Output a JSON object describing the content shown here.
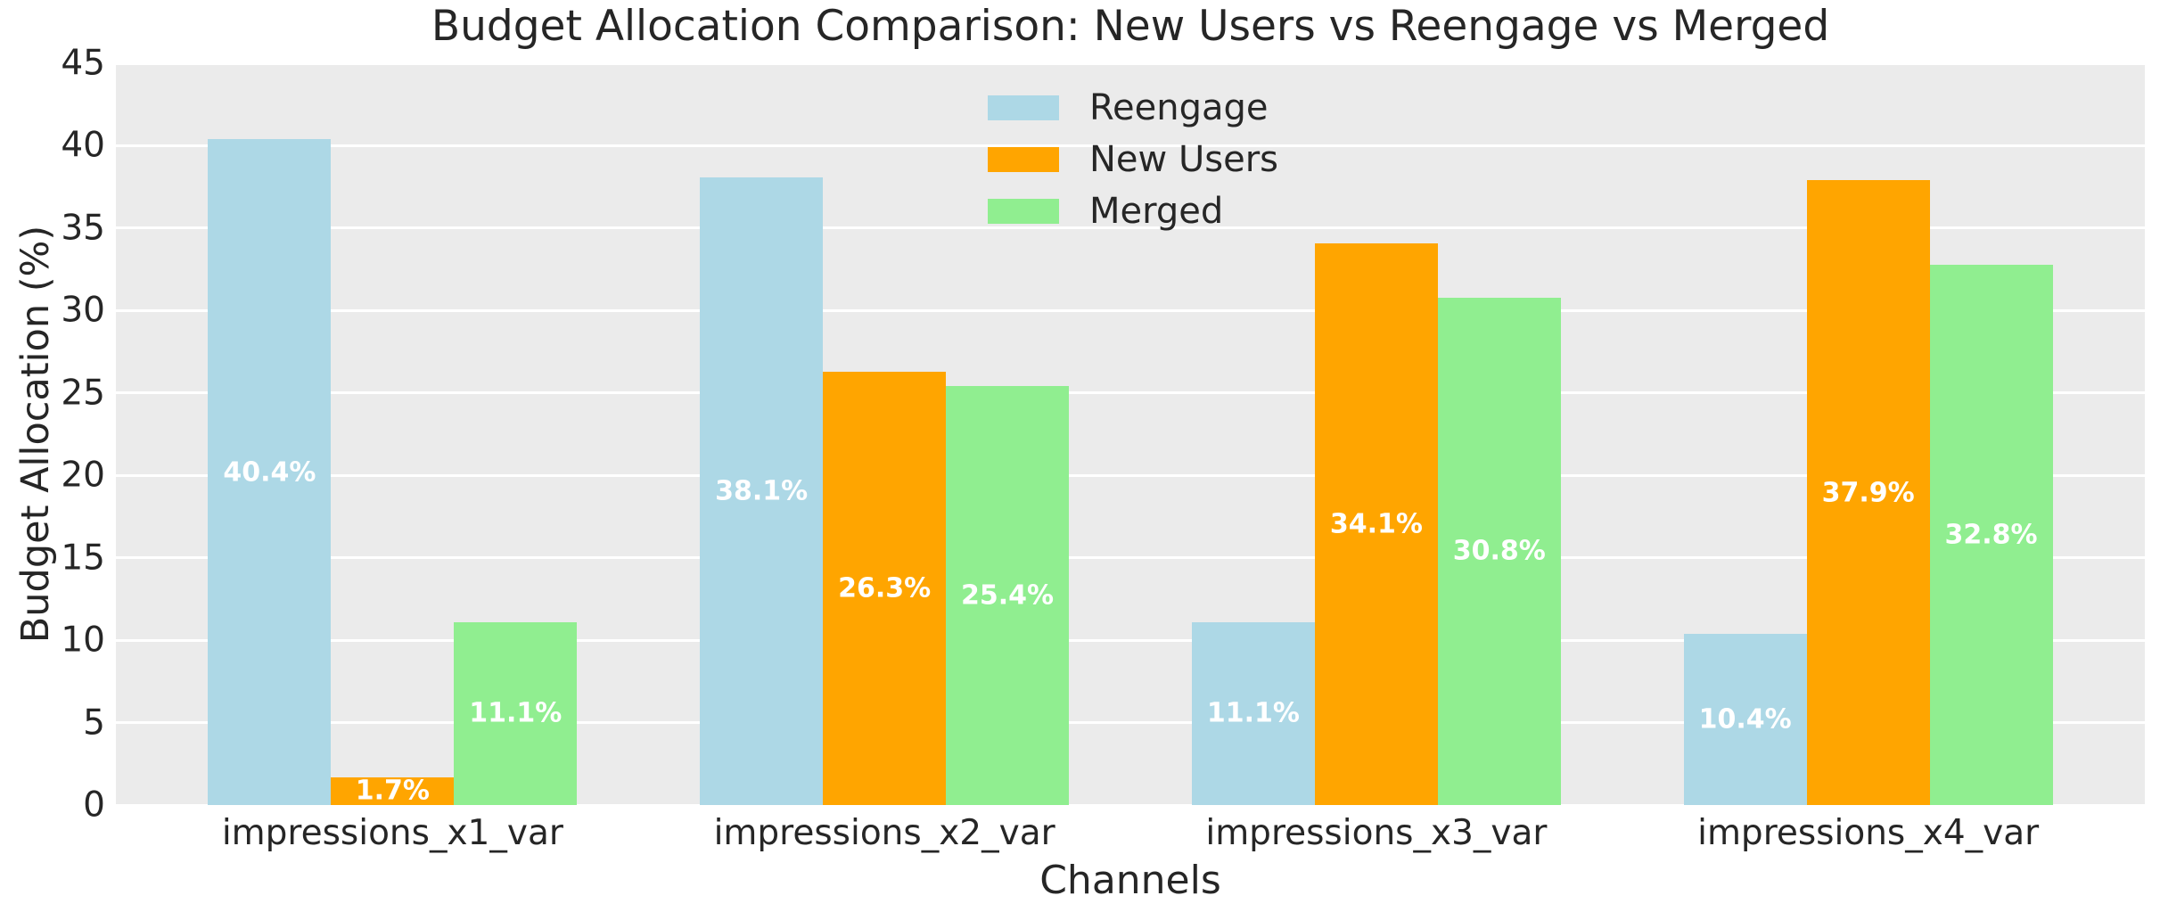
{
  "chart_data": {
    "type": "bar",
    "title": "Budget Allocation Comparison: New Users vs Reengage vs Merged",
    "xlabel": "Channels",
    "ylabel": "Budget Allocation (%)",
    "categories": [
      "impressions_x1_var",
      "impressions_x2_var",
      "impressions_x3_var",
      "impressions_x4_var"
    ],
    "series": [
      {
        "name": "Reengage",
        "color": "#ADD8E6",
        "values": [
          40.4,
          38.1,
          11.1,
          10.4
        ],
        "labels": [
          "40.4%",
          "38.1%",
          "11.1%",
          "10.4%"
        ]
      },
      {
        "name": "New Users",
        "color": "#FFA500",
        "values": [
          1.7,
          26.3,
          34.1,
          37.9
        ],
        "labels": [
          "1.7%",
          "26.3%",
          "34.1%",
          "37.9%"
        ]
      },
      {
        "name": "Merged",
        "color": "#90EE90",
        "values": [
          11.1,
          25.4,
          30.8,
          32.8
        ],
        "labels": [
          "11.1%",
          "25.4%",
          "30.8%",
          "32.8%"
        ]
      }
    ],
    "ylim": [
      0,
      45
    ],
    "yticks": [
      "0",
      "5",
      "10",
      "15",
      "20",
      "25",
      "30",
      "35",
      "40",
      "45"
    ],
    "grid": true,
    "legend_position": "upper center",
    "colors": {
      "figure_background": "#FFFFFF",
      "plot_background": "#EBEBEB",
      "gridline": "#FFFFFF",
      "text": "#262626",
      "bar_label_text": "#FFFFFF"
    }
  }
}
